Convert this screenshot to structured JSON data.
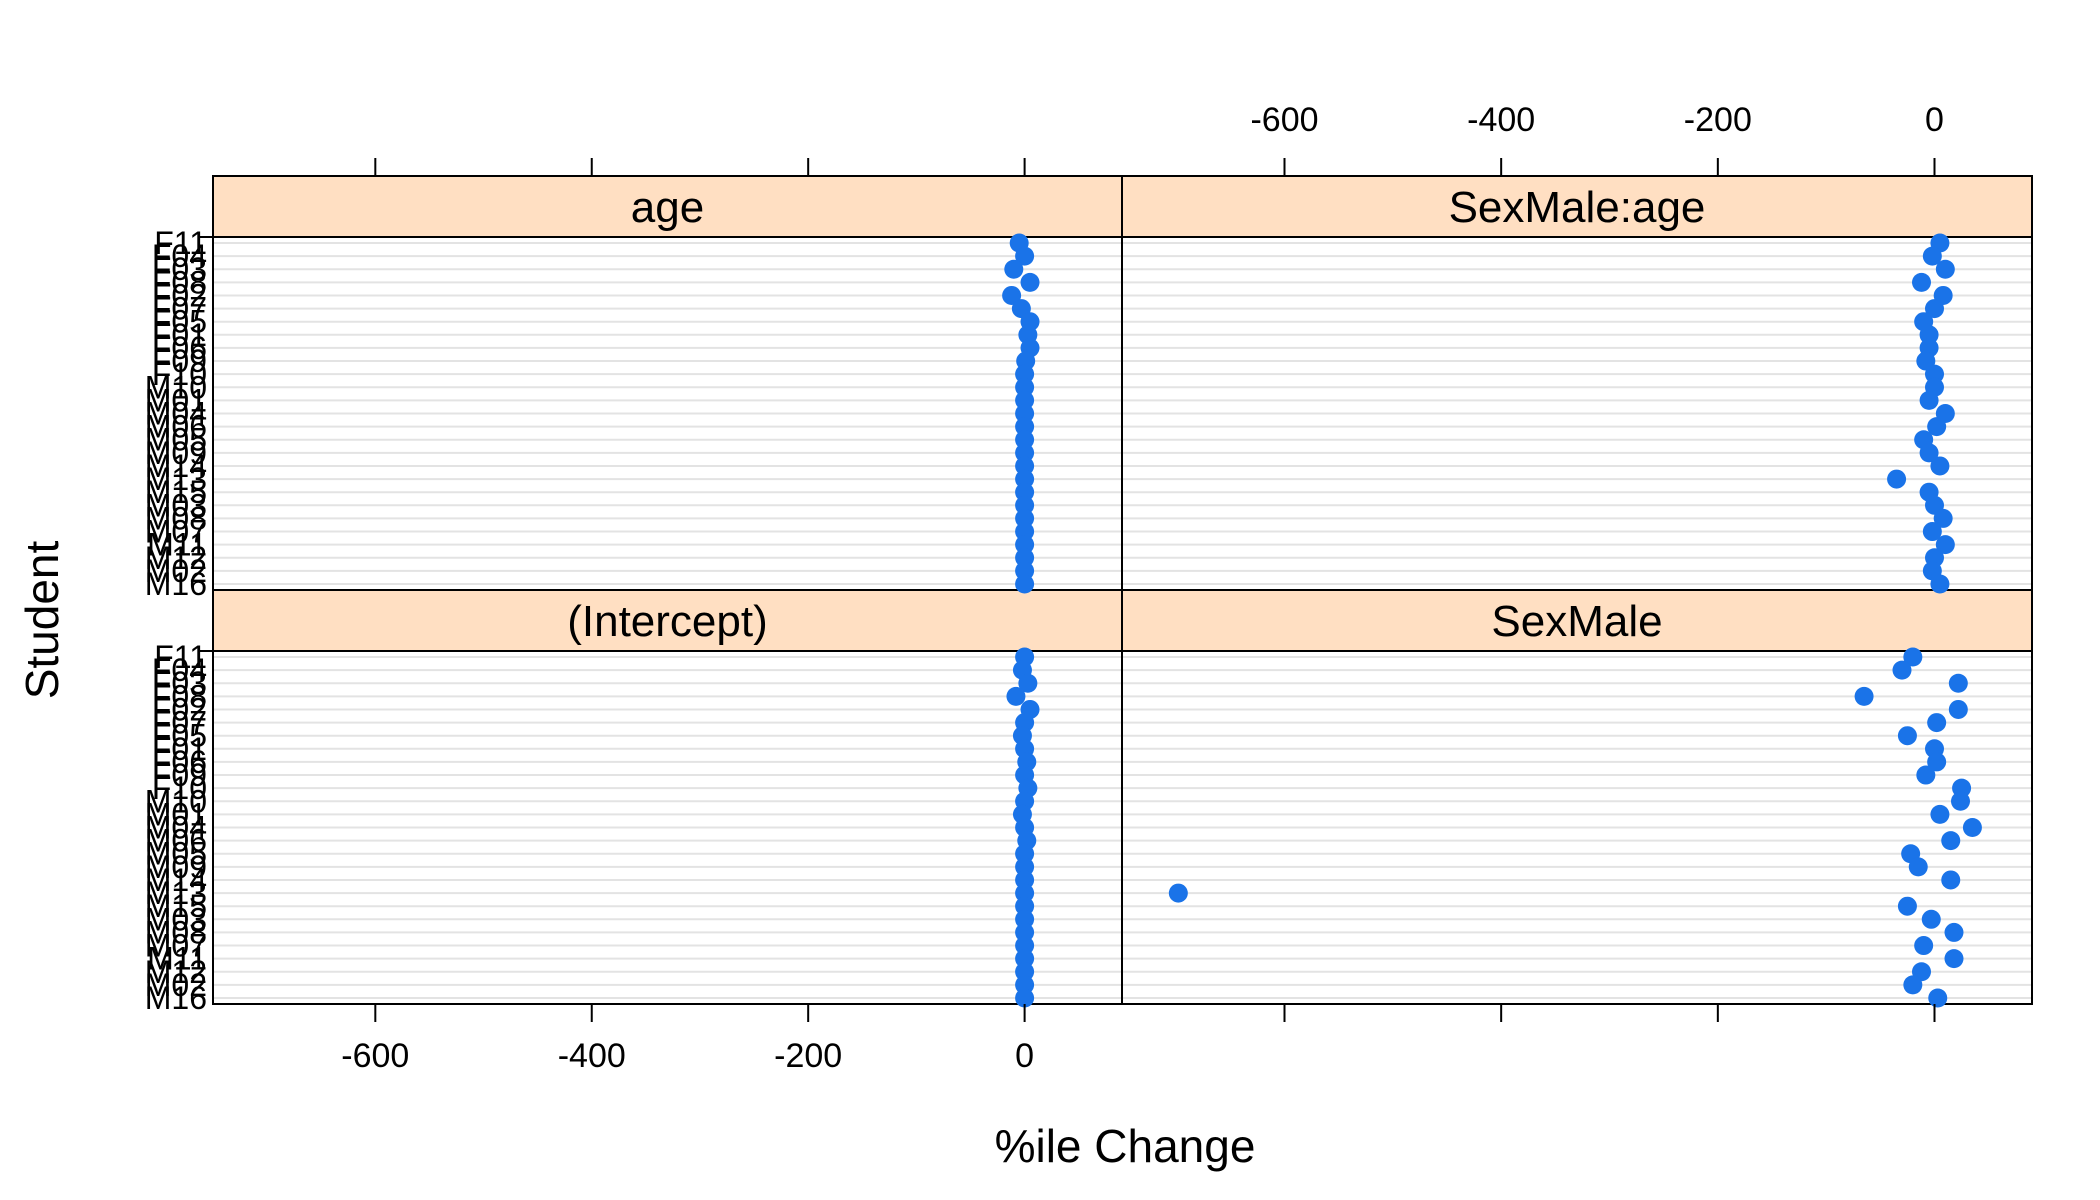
{
  "chart_data": {
    "type": "dotplot",
    "title": "",
    "xlabel": "%ile Change",
    "ylabel": "Student",
    "xlim": [
      -750,
      90
    ],
    "x_ticks": [
      -600,
      -400,
      -200,
      0
    ],
    "grid": true,
    "students": [
      "F11",
      "F04",
      "F03",
      "F08",
      "F02",
      "F07",
      "F05",
      "F01",
      "F06",
      "F09",
      "F10",
      "M10",
      "M01",
      "M04",
      "M06",
      "M05",
      "M09",
      "M14",
      "M13",
      "M15",
      "M03",
      "M08",
      "M07",
      "M11",
      "M12",
      "M02",
      "M16"
    ],
    "point_color": "#1a73e8",
    "strip_color": "#ffdfc2",
    "panels": [
      {
        "name": "age",
        "values": [
          -5,
          0,
          -10,
          5,
          -12,
          -3,
          5,
          3,
          5,
          1,
          0,
          0,
          0,
          0,
          0,
          0,
          0,
          0,
          0,
          0,
          0,
          0,
          0,
          0,
          0,
          0,
          0
        ]
      },
      {
        "name": "SexMale:age",
        "values": [
          5,
          -2,
          10,
          -12,
          8,
          0,
          -10,
          -5,
          -5,
          -8,
          0,
          0,
          -5,
          10,
          2,
          -10,
          -5,
          5,
          -35,
          -5,
          0,
          8,
          -2,
          10,
          0,
          -2,
          5
        ]
      },
      {
        "name": "(Intercept)",
        "values": [
          0,
          -2,
          3,
          -8,
          5,
          0,
          -2,
          0,
          2,
          0,
          3,
          0,
          -2,
          0,
          2,
          0,
          0,
          0,
          0,
          0,
          0,
          0,
          0,
          0,
          0,
          0,
          0
        ]
      },
      {
        "name": "SexMale",
        "values": [
          -20,
          -30,
          22,
          -65,
          22,
          2,
          -25,
          0,
          2,
          -8,
          25,
          24,
          5,
          35,
          15,
          -22,
          -15,
          15,
          -698,
          -25,
          -3,
          18,
          -10,
          18,
          -12,
          -20,
          3
        ]
      }
    ]
  }
}
